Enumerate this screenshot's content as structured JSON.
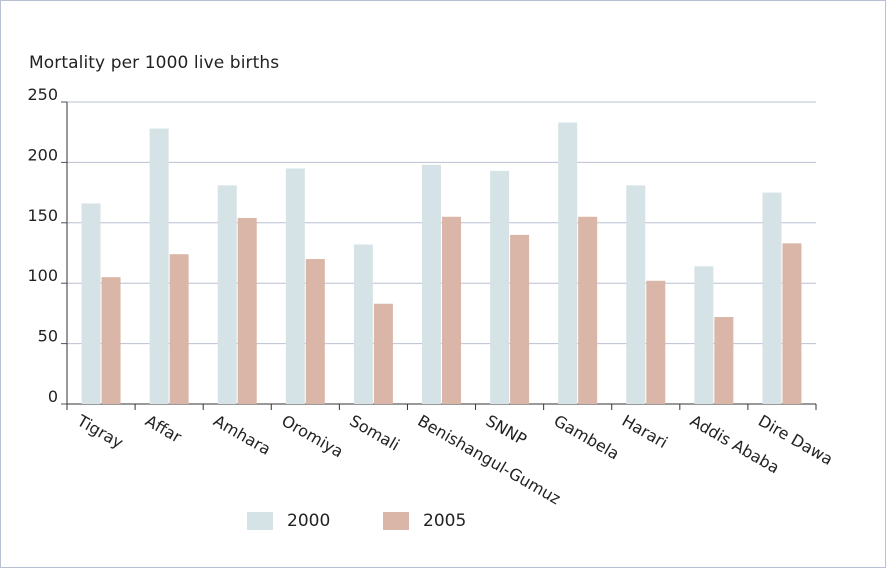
{
  "chart_data": {
    "type": "bar",
    "ylabel": "Mortality per 1000 live births",
    "categories": [
      "Tigray",
      "Affar",
      "Amhara",
      "Oromiya",
      "Somali",
      "Benishangul-Gumuz",
      "SNNP",
      "Gambela",
      "Harari",
      "Addis Ababa",
      "Dire Dawa"
    ],
    "series": [
      {
        "name": "2000",
        "color": "#d6e3e6",
        "values": [
          166,
          228,
          181,
          195,
          132,
          198,
          193,
          233,
          181,
          114,
          175
        ]
      },
      {
        "name": "2005",
        "color": "#d9b6a7",
        "values": [
          105,
          124,
          154,
          120,
          83,
          155,
          140,
          155,
          102,
          72,
          133
        ]
      }
    ],
    "ylim": [
      0,
      250
    ],
    "yticks": [
      0,
      50,
      100,
      150,
      200,
      250
    ],
    "grid": true,
    "legend_position": "bottom"
  }
}
